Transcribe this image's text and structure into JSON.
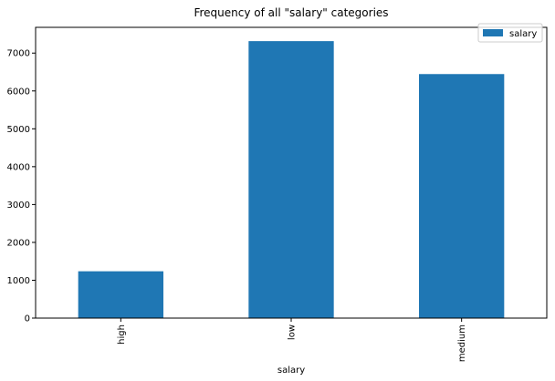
{
  "chart_data": {
    "type": "bar",
    "title": "Frequency of all \"salary\" categories",
    "xlabel": "salary",
    "ylabel": "",
    "categories": [
      "high",
      "low",
      "medium"
    ],
    "series": [
      {
        "name": "salary",
        "values": [
          1237,
          7316,
          6446
        ],
        "color": "#1f77b4"
      }
    ],
    "ylim": [
      0,
      7680
    ],
    "yticks": [
      0,
      1000,
      2000,
      3000,
      4000,
      5000,
      6000,
      7000
    ],
    "grid": false,
    "legend_position": "top-right"
  }
}
